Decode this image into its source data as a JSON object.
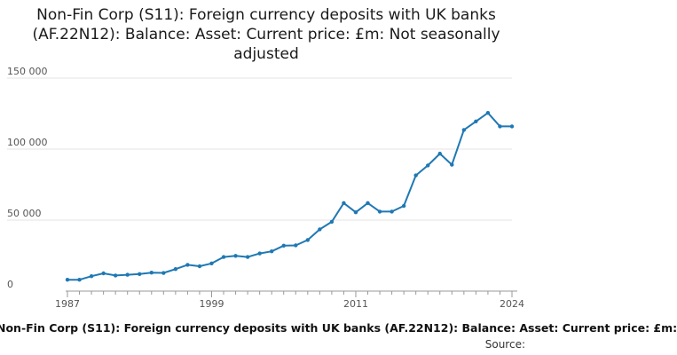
{
  "chart_data": {
    "type": "line",
    "title": "Non-Fin Corp (S11): Foreign currency deposits with UK banks (AF.22N12): Balance: Asset: Current price: £m: Not seasonally adjusted",
    "xlabel": "",
    "ylabel": "",
    "xlim": [
      1987,
      2024
    ],
    "ylim": [
      0,
      150000
    ],
    "y_ticks": [
      0,
      50000,
      100000,
      150000
    ],
    "y_tick_labels": [
      "0",
      "50 000",
      "100 000",
      "150 000"
    ],
    "x_ticks": [
      1987,
      1999,
      2011,
      2024
    ],
    "x_tick_labels": [
      "1987",
      "1999",
      "2011",
      "2024"
    ],
    "grid": true,
    "series": [
      {
        "name": "",
        "color": "#1f78b4",
        "x": [
          1987,
          1988,
          1989,
          1990,
          1991,
          1992,
          1993,
          1994,
          1995,
          1996,
          1997,
          1998,
          1999,
          2000,
          2001,
          2002,
          2003,
          2004,
          2005,
          2006,
          2007,
          2008,
          2009,
          2010,
          2011,
          2012,
          2013,
          2014,
          2015,
          2016,
          2017,
          2018,
          2019,
          2020,
          2021,
          2022,
          2023,
          2024
        ],
        "values": [
          8000,
          8000,
          10500,
          12500,
          11000,
          11500,
          12000,
          13000,
          12800,
          15500,
          18500,
          17500,
          19500,
          24000,
          24800,
          24000,
          26500,
          28000,
          32000,
          32200,
          36000,
          43500,
          48800,
          62000,
          55500,
          62000,
          56000,
          56000,
          60000,
          81500,
          88500,
          96800,
          89000,
          113500,
          119500,
          125500,
          116000,
          116000
        ]
      }
    ]
  },
  "footer": {
    "series_label": "Non-Fin Corp (S11): Foreign currency deposits with UK banks (AF.22N12): Balance: Asset: Current price: £m:",
    "source_label": "Source:"
  }
}
